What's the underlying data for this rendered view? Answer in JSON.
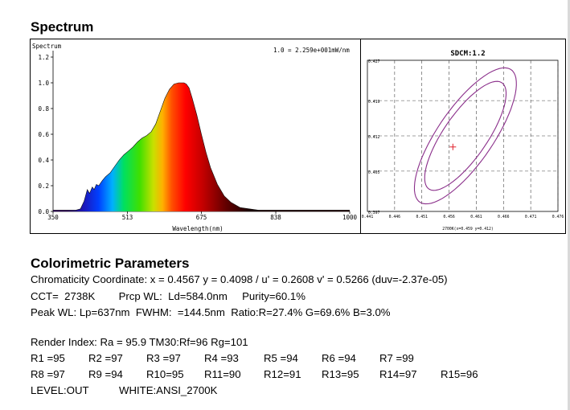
{
  "section_titles": {
    "spectrum": "Spectrum",
    "colorimetric": "Colorimetric Parameters"
  },
  "chart_data": [
    {
      "type": "area",
      "title": "Spectrum",
      "annotation": "1.0 = 2.259e+001mW/nm",
      "xlabel": "Wavelength(nm)",
      "ylabel": "",
      "xlim": [
        350,
        1000
      ],
      "ylim": [
        0,
        1.2
      ],
      "xticks": [
        "350",
        "513",
        "675",
        "838",
        "1000"
      ],
      "yticks": [
        "0.0",
        "0.2",
        "0.4",
        "0.6",
        "0.8",
        "1.0",
        "1.2"
      ],
      "grid": false,
      "fill": "visible-spectrum-gradient",
      "x": [
        350,
        380,
        400,
        410,
        418,
        425,
        430,
        436,
        440,
        445,
        450,
        458,
        465,
        475,
        485,
        495,
        505,
        515,
        525,
        535,
        545,
        555,
        565,
        575,
        585,
        595,
        605,
        615,
        625,
        632,
        637,
        642,
        648,
        655,
        665,
        675,
        685,
        695,
        710,
        725,
        740,
        760,
        780,
        800,
        850,
        900,
        1000
      ],
      "y": [
        0.01,
        0.01,
        0.01,
        0.02,
        0.08,
        0.17,
        0.14,
        0.19,
        0.17,
        0.21,
        0.2,
        0.24,
        0.27,
        0.3,
        0.35,
        0.4,
        0.44,
        0.47,
        0.5,
        0.54,
        0.57,
        0.59,
        0.62,
        0.68,
        0.78,
        0.88,
        0.95,
        0.99,
        1.0,
        1.0,
        1.0,
        0.99,
        0.96,
        0.88,
        0.75,
        0.6,
        0.46,
        0.34,
        0.21,
        0.12,
        0.07,
        0.03,
        0.02,
        0.01,
        0.01,
        0.01,
        0.01
      ]
    },
    {
      "type": "scatter",
      "title": "SDCM:1.2",
      "xlabel": "2700K(x=0.459 y=0.412)",
      "xticks": [
        "0.441",
        "0.446",
        "0.451",
        "0.456",
        "0.461",
        "0.466",
        "0.471",
        "0.476"
      ],
      "yticks": [
        "0.397",
        "0.405",
        "0.412",
        "0.419",
        "0.427"
      ],
      "xlim": [
        0.441,
        0.476
      ],
      "ylim": [
        0.397,
        0.427
      ],
      "grid": true,
      "marker": {
        "x": 0.4567,
        "y": 0.4098,
        "symbol": "+",
        "color": "#e0202a"
      },
      "ellipses": [
        {
          "cx": 0.459,
          "cy": 0.412,
          "a": 0.0125,
          "b": 0.0041,
          "angle_deg": 58
        },
        {
          "cx": 0.459,
          "cy": 0.412,
          "a": 0.0156,
          "b": 0.0052,
          "angle_deg": 58
        }
      ],
      "ellipse_color": "#8a2e8a"
    }
  ],
  "params": {
    "line1": "Chromaticity Coordinate: x = 0.4567 y = 0.4098 / u' = 0.2608 v' = 0.5266 (duv=-2.37e-05)",
    "line2": "CCT=  2738K        Prcp WL:  Ld=584.0nm     Purity=60.1%",
    "line3": "Peak WL: Lp=637nm  FWHM:  =144.5nm  Ratio:R=27.4% G=69.6% B=3.0%",
    "line4": "Render Index: Ra = 95.9 TM30:Rf=96 Rg=101"
  },
  "render_row1": [
    "R1 =95",
    "R2 =97",
    "R3 =97",
    "R4 =93",
    "R5 =94",
    "R6 =94",
    "R7 =99"
  ],
  "render_row2": [
    "R8 =97",
    "R9 =94",
    "R10=95",
    "R11=90",
    "R12=91",
    "R13=95",
    "R14=97",
    "R15=96"
  ],
  "level": "LEVEL:OUT",
  "white": "WHITE:ANSI_2700K"
}
